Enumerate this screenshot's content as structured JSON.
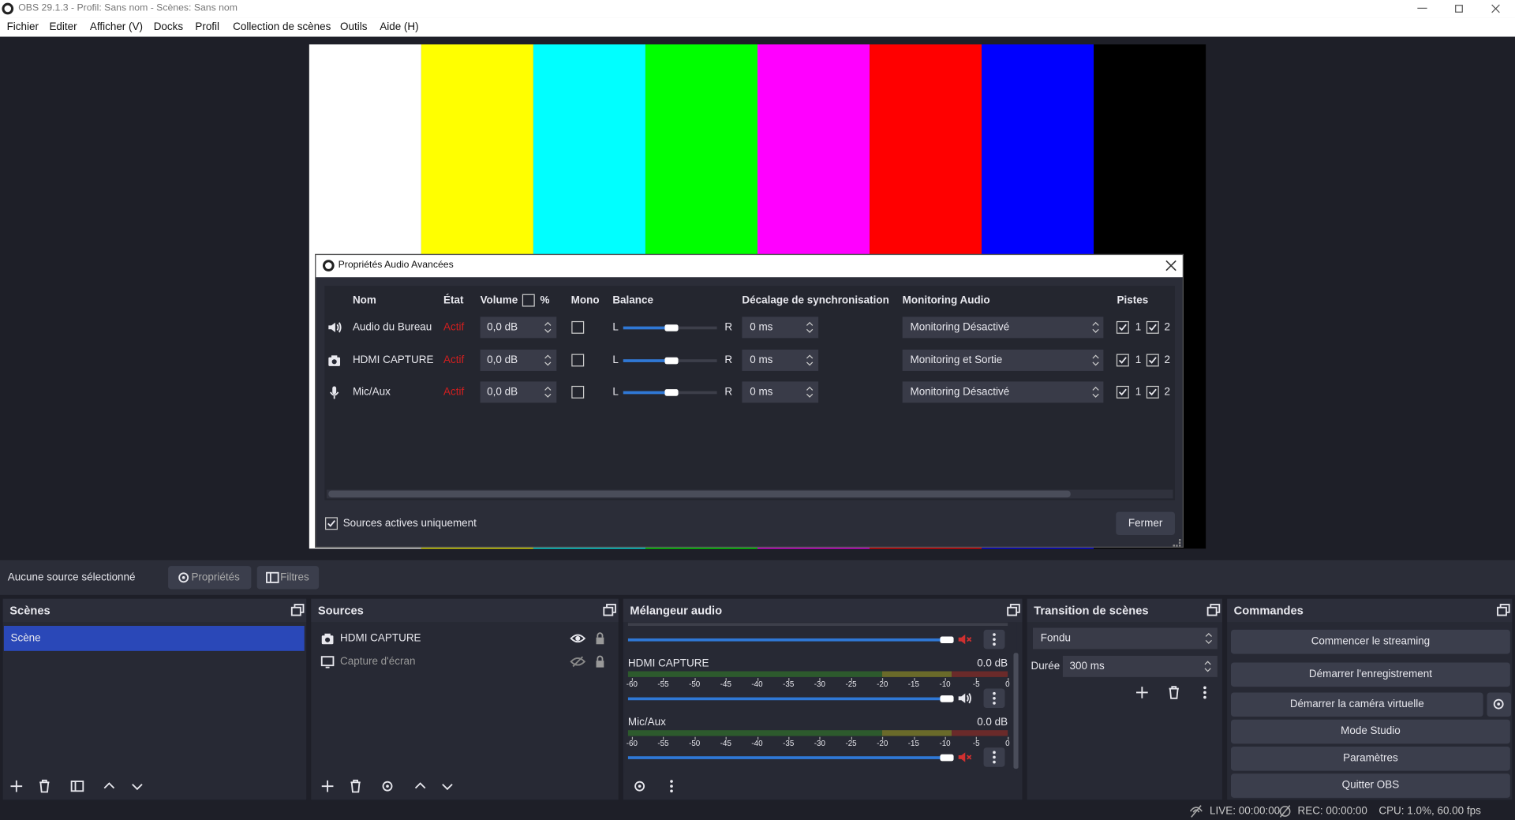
{
  "window": {
    "title": "OBS 29.1.3 - Profil: Sans nom - Scènes: Sans nom"
  },
  "menu": [
    "Fichier",
    "Editer",
    "Afficher (V)",
    "Docks",
    "Profil",
    "Collection de scènes",
    "Outils",
    "Aide (H)"
  ],
  "dialog": {
    "title": "Propriétés Audio Avancées",
    "headers": {
      "name": "Nom",
      "state": "État",
      "volume": "Volume",
      "percent": "%",
      "mono": "Mono",
      "balance": "Balance",
      "sync": "Décalage de synchronisation",
      "monitoring": "Monitoring Audio",
      "tracks": "Pistes"
    },
    "rows": [
      {
        "name": "Audio du Bureau",
        "state": "Actif",
        "volume": "0,0 dB",
        "left": "L",
        "right": "R",
        "sync": "0 ms",
        "monitoring": "Monitoring Désactivé",
        "track1": "1",
        "track2": "2"
      },
      {
        "name": "HDMI CAPTURE",
        "state": "Actif",
        "volume": "0,0 dB",
        "left": "L",
        "right": "R",
        "sync": "0 ms",
        "monitoring": "Monitoring et Sortie",
        "track1": "1",
        "track2": "2"
      },
      {
        "name": "Mic/Aux",
        "state": "Actif",
        "volume": "0,0 dB",
        "left": "L",
        "right": "R",
        "sync": "0 ms",
        "monitoring": "Monitoring Désactivé",
        "track1": "1",
        "track2": "2"
      }
    ],
    "active_only": "Sources actives uniquement",
    "close": "Fermer"
  },
  "toolbar": {
    "no_source": "Aucune source sélectionné",
    "properties": "Propriétés",
    "filters": "Filtres"
  },
  "scenes": {
    "title": "Scènes",
    "items": [
      "Scène"
    ]
  },
  "sources": {
    "title": "Sources",
    "items": [
      "HDMI CAPTURE",
      "Capture d'écran"
    ]
  },
  "mixer": {
    "title": "Mélangeur audio",
    "channels": [
      {
        "name": "HDMI CAPTURE",
        "level": "0.0 dB"
      },
      {
        "name": "Mic/Aux",
        "level": "0.0 dB"
      }
    ],
    "scale": [
      "-60",
      "-55",
      "-50",
      "-45",
      "-40",
      "-35",
      "-30",
      "-25",
      "-20",
      "-15",
      "-10",
      "-5",
      "0"
    ]
  },
  "transitions": {
    "title": "Transition de scènes",
    "transition": "Fondu",
    "duration_label": "Durée",
    "duration": "300 ms"
  },
  "controls": {
    "title": "Commandes",
    "buttons": [
      "Commencer le streaming",
      "Démarrer l'enregistrement",
      "Démarrer la caméra virtuelle",
      "Mode Studio",
      "Paramètres",
      "Quitter OBS"
    ]
  },
  "status": {
    "live": "LIVE: 00:00:00",
    "rec": "REC: 00:00:00",
    "cpu": "CPU: 1.0%, 60.00 fps"
  }
}
